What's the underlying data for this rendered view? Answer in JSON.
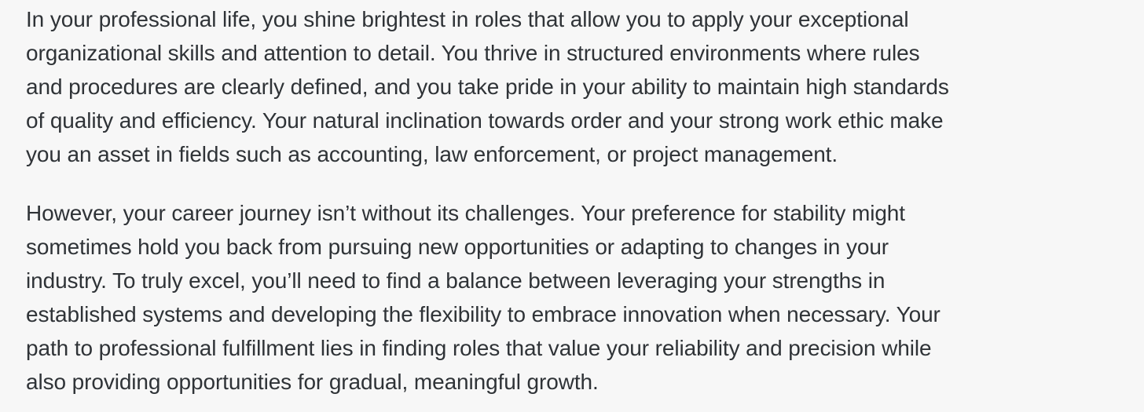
{
  "article": {
    "paragraphs": [
      {
        "lines": [
          "In your professional life, you shine brightest in roles that allow you to apply your exceptional",
          "organizational skills and attention to detail. You thrive in structured environments where rules",
          "and procedures are clearly defined, and you take pride in your ability to maintain high standards",
          "of quality and efficiency. Your natural inclination towards order and your strong work ethic make",
          "you an asset in fields such as accounting, law enforcement, or project management."
        ]
      },
      {
        "lines": [
          "However, your career journey isn’t without its challenges. Your preference for stability might",
          "sometimes hold you back from pursuing new opportunities or adapting to changes in your",
          "industry. To truly excel, you’ll need to find a balance between leveraging your strengths in",
          "established systems and developing the flexibility to embrace innovation when necessary. Your",
          "path to professional fulfillment lies in finding roles that value your reliability and precision while",
          "also providing opportunities for gradual, meaningful growth."
        ]
      }
    ]
  }
}
